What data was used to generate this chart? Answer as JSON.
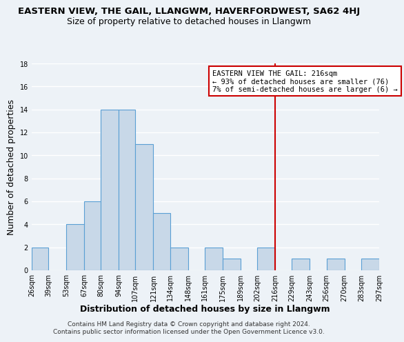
{
  "title": "EASTERN VIEW, THE GAIL, LLANGWM, HAVERFORDWEST, SA62 4HJ",
  "subtitle": "Size of property relative to detached houses in Llangwm",
  "xlabel": "Distribution of detached houses by size in Llangwm",
  "ylabel": "Number of detached properties",
  "bin_labels": [
    "26sqm",
    "39sqm",
    "53sqm",
    "67sqm",
    "80sqm",
    "94sqm",
    "107sqm",
    "121sqm",
    "134sqm",
    "148sqm",
    "161sqm",
    "175sqm",
    "189sqm",
    "202sqm",
    "216sqm",
    "229sqm",
    "243sqm",
    "256sqm",
    "270sqm",
    "283sqm",
    "297sqm"
  ],
  "bin_edges": [
    26,
    39,
    53,
    67,
    80,
    94,
    107,
    121,
    134,
    148,
    161,
    175,
    189,
    202,
    216,
    229,
    243,
    256,
    270,
    283,
    297
  ],
  "counts": [
    2,
    0,
    4,
    6,
    14,
    14,
    11,
    5,
    2,
    0,
    2,
    1,
    0,
    2,
    0,
    1,
    0,
    1,
    0,
    1,
    0
  ],
  "bar_color": "#c8d8e8",
  "bar_edge_color": "#5a9fd4",
  "vline_x": 216,
  "vline_color": "#cc0000",
  "annotation_title": "EASTERN VIEW THE GAIL: 216sqm",
  "annotation_line1": "← 93% of detached houses are smaller (76)",
  "annotation_line2": "7% of semi-detached houses are larger (6) →",
  "annotation_box_color": "white",
  "annotation_box_edge": "#cc0000",
  "ylim": [
    0,
    18
  ],
  "yticks": [
    0,
    2,
    4,
    6,
    8,
    10,
    12,
    14,
    16,
    18
  ],
  "footer1": "Contains HM Land Registry data © Crown copyright and database right 2024.",
  "footer2": "Contains public sector information licensed under the Open Government Licence v3.0.",
  "bg_color": "#edf2f7",
  "grid_color": "white",
  "title_fontsize": 9.5,
  "subtitle_fontsize": 9,
  "axis_label_fontsize": 9,
  "tick_fontsize": 7,
  "footer_fontsize": 6.5,
  "annotation_fontsize": 7.5
}
